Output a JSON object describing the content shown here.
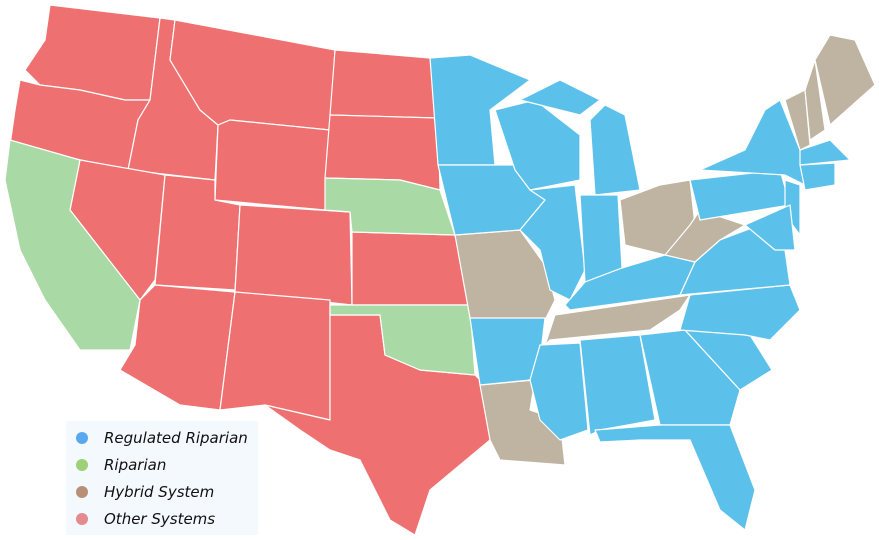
{
  "colors": {
    "regulated_riparian": "#5cc1ea",
    "riparian": "#a9d9a4",
    "hybrid": "#bfb3a1",
    "other": "#ef7070"
  },
  "legend": [
    {
      "label": "Regulated Riparian",
      "dot_color": "#5aa9f0",
      "category": "regulated_riparian"
    },
    {
      "label": "Riparian",
      "dot_color": "#9ed07a",
      "category": "riparian"
    },
    {
      "label": "Hybrid System",
      "dot_color": "#b89078",
      "category": "hybrid"
    },
    {
      "label": "Other Systems",
      "dot_color": "#e58a8f",
      "category": "other"
    }
  ],
  "states": {
    "WA": "other",
    "OR": "other",
    "ID": "other",
    "MT": "other",
    "WY": "other",
    "ND": "other",
    "SD": "other",
    "NV": "other",
    "UT": "other",
    "CO": "other",
    "AZ": "other",
    "NM": "other",
    "KS": "other",
    "TX": "other",
    "CA": "riparian",
    "NE": "riparian",
    "OK": "riparian",
    "MO": "hybrid",
    "LA": "hybrid",
    "OH": "hybrid",
    "TN": "hybrid",
    "WV": "hybrid",
    "VT": "hybrid",
    "NH": "hybrid",
    "ME": "hybrid",
    "MN": "regulated_riparian",
    "IA": "regulated_riparian",
    "AR": "regulated_riparian",
    "WI": "regulated_riparian",
    "IL": "regulated_riparian",
    "MI": "regulated_riparian",
    "MI2": "regulated_riparian",
    "IN": "regulated_riparian",
    "KY": "regulated_riparian",
    "MS": "regulated_riparian",
    "AL": "regulated_riparian",
    "GA": "regulated_riparian",
    "FL": "regulated_riparian",
    "SC": "regulated_riparian",
    "NC": "regulated_riparian",
    "VA": "regulated_riparian",
    "PA": "regulated_riparian",
    "NY": "regulated_riparian",
    "NJ": "regulated_riparian",
    "MD": "regulated_riparian",
    "MA": "regulated_riparian",
    "CT": "regulated_riparian"
  }
}
